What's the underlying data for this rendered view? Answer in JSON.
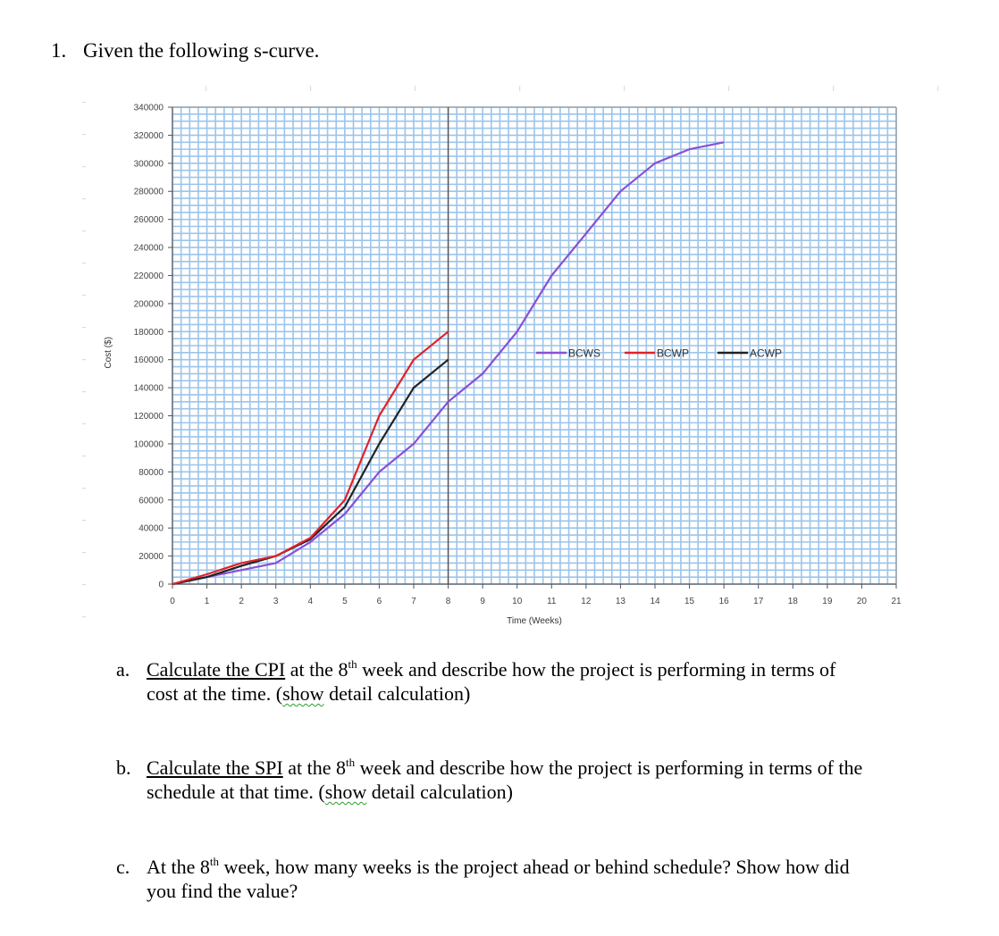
{
  "question": {
    "number": "1.",
    "title": "Given the following s-curve."
  },
  "chart_data": {
    "type": "line",
    "title": "",
    "xlabel": "Time (Weeks)",
    "ylabel": "Cost ($)",
    "xlim": [
      0,
      21
    ],
    "ylim": [
      0,
      340000
    ],
    "x_ticks": [
      0,
      1,
      2,
      3,
      4,
      5,
      6,
      7,
      8,
      9,
      10,
      11,
      12,
      13,
      14,
      15,
      16,
      17,
      18,
      19,
      20,
      21
    ],
    "y_ticks": [
      0,
      20000,
      40000,
      60000,
      80000,
      100000,
      120000,
      140000,
      160000,
      180000,
      200000,
      220000,
      240000,
      260000,
      280000,
      300000,
      320000,
      340000
    ],
    "grid": true,
    "reference_line": {
      "x": 8,
      "color": "#555555"
    },
    "legend_position": "inside-right-middle",
    "series": [
      {
        "name": "BCWS",
        "color": "#8a4fd8",
        "x": [
          0,
          1,
          2,
          3,
          4,
          5,
          6,
          7,
          8,
          9,
          10,
          11,
          12,
          13,
          14,
          15,
          16
        ],
        "values": [
          0,
          5000,
          10000,
          15000,
          30000,
          50000,
          80000,
          100000,
          130000,
          150000,
          180000,
          220000,
          250000,
          280000,
          300000,
          310000,
          315000
        ]
      },
      {
        "name": "BCWP",
        "color": "#e0222a",
        "x": [
          0,
          1,
          2,
          3,
          4,
          5,
          6,
          7,
          8
        ],
        "values": [
          0,
          7000,
          15000,
          20000,
          33000,
          60000,
          120000,
          160000,
          180000
        ]
      },
      {
        "name": "ACWP",
        "color": "#222222",
        "x": [
          0,
          1,
          2,
          3,
          4,
          5,
          6,
          7,
          8
        ],
        "values": [
          0,
          5000,
          13000,
          20000,
          32000,
          55000,
          100000,
          140000,
          160000
        ]
      }
    ]
  },
  "parts": [
    {
      "letter": "a.",
      "underlined": "Calculate the CPI",
      "pre_sup": " at the 8",
      "sup": "th",
      "post_sup": " week and describe how the project is performing in terms of",
      "line2_pre": "cost at the time.  (",
      "line2_squig": "show",
      "line2_post": " detail calculation)"
    },
    {
      "letter": "b.",
      "underlined": "Calculate the SPI",
      "pre_sup": " at the 8",
      "sup": "th",
      "post_sup": " week and describe how the project is performing in terms of the",
      "line2_pre": "schedule at that time. (",
      "line2_squig": "show",
      "line2_post": " detail calculation)"
    },
    {
      "letter": "c.",
      "pre_sup": "At the 8",
      "sup": "th",
      "post_sup": " week, how many weeks is the project ahead or behind schedule? Show how did",
      "line2": "you find the value?"
    }
  ]
}
